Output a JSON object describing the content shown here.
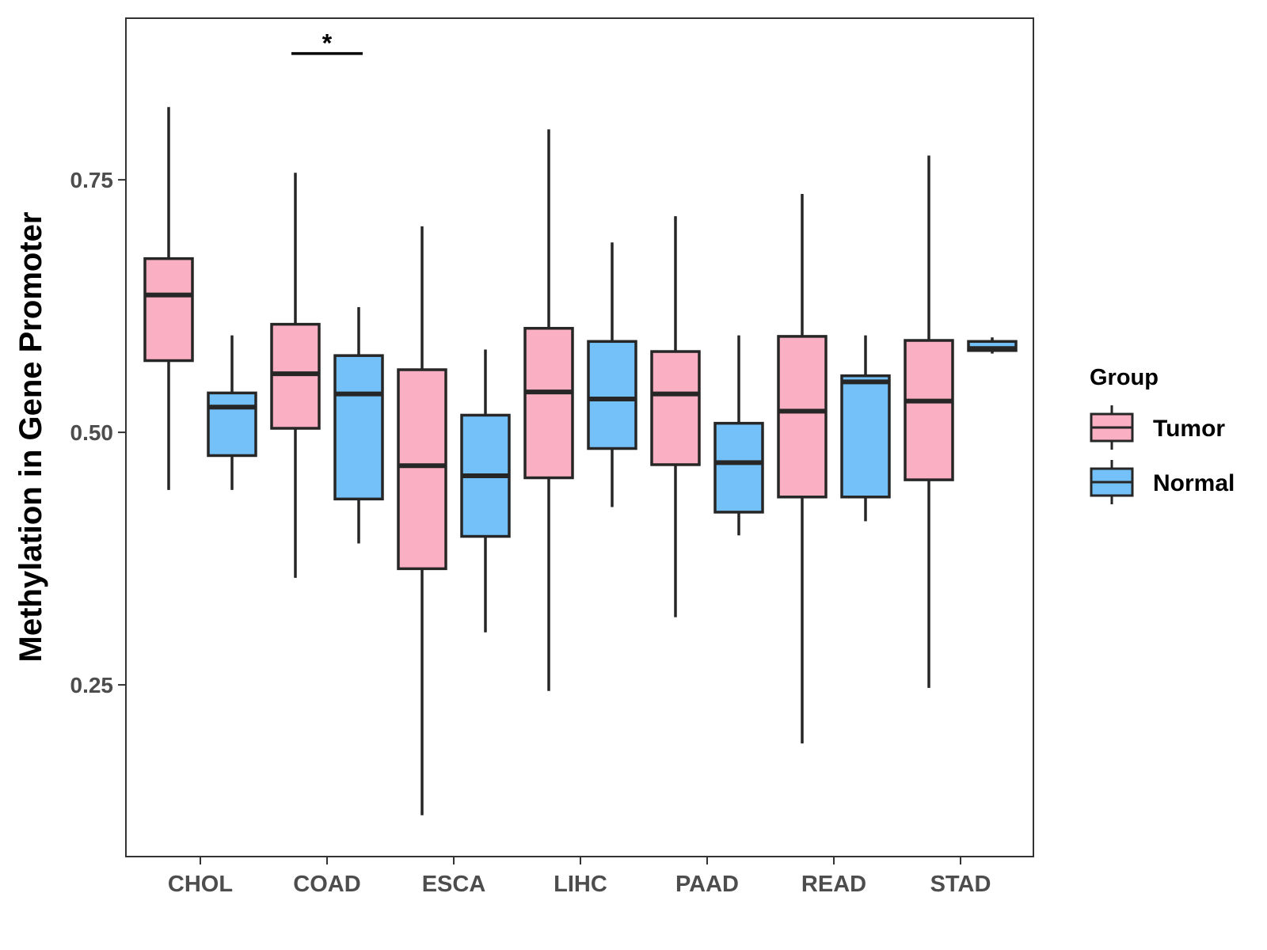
{
  "chart_data": {
    "type": "box",
    "title": "",
    "xlabel": "",
    "ylabel": "Methylation in Gene Promoter",
    "ylim": [
      0.08,
      0.91
    ],
    "yticks": [
      0.25,
      0.5,
      0.75
    ],
    "ytick_labels": [
      "0.25",
      "0.50",
      "0.75"
    ],
    "categories": [
      "CHOL",
      "COAD",
      "ESCA",
      "LIHC",
      "PAAD",
      "READ",
      "STAD"
    ],
    "legend": {
      "title": "Group",
      "position": "right",
      "entries": [
        "Tumor",
        "Normal"
      ]
    },
    "colors": {
      "Tumor": "#FBAFC2",
      "Normal": "#74C0F8",
      "outline": "#262626"
    },
    "series": [
      {
        "name": "Tumor",
        "boxes": [
          {
            "min": 0.443,
            "q1": 0.571,
            "median": 0.636,
            "q3": 0.672,
            "max": 0.822
          },
          {
            "min": 0.356,
            "q1": 0.504,
            "median": 0.558,
            "q3": 0.607,
            "max": 0.757
          },
          {
            "min": 0.121,
            "q1": 0.365,
            "median": 0.467,
            "q3": 0.562,
            "max": 0.704
          },
          {
            "min": 0.244,
            "q1": 0.455,
            "median": 0.54,
            "q3": 0.603,
            "max": 0.8
          },
          {
            "min": 0.317,
            "q1": 0.468,
            "median": 0.538,
            "q3": 0.58,
            "max": 0.714
          },
          {
            "min": 0.192,
            "q1": 0.436,
            "median": 0.521,
            "q3": 0.595,
            "max": 0.736
          },
          {
            "min": 0.247,
            "q1": 0.453,
            "median": 0.531,
            "q3": 0.591,
            "max": 0.774
          }
        ]
      },
      {
        "name": "Normal",
        "boxes": [
          {
            "min": 0.443,
            "q1": 0.477,
            "median": 0.525,
            "q3": 0.539,
            "max": 0.596
          },
          {
            "min": 0.39,
            "q1": 0.434,
            "median": 0.538,
            "q3": 0.576,
            "max": 0.624
          },
          {
            "min": 0.302,
            "q1": 0.397,
            "median": 0.457,
            "q3": 0.517,
            "max": 0.582
          },
          {
            "min": 0.426,
            "q1": 0.484,
            "median": 0.533,
            "q3": 0.59,
            "max": 0.688
          },
          {
            "min": 0.398,
            "q1": 0.421,
            "median": 0.47,
            "q3": 0.509,
            "max": 0.596
          },
          {
            "min": 0.412,
            "q1": 0.436,
            "median": 0.55,
            "q3": 0.556,
            "max": 0.596
          },
          {
            "min": 0.578,
            "q1": 0.581,
            "median": 0.583,
            "q3": 0.59,
            "max": 0.594
          }
        ]
      }
    ],
    "annotations": [
      {
        "text": "*",
        "category": "COAD",
        "y": 0.875
      }
    ]
  }
}
